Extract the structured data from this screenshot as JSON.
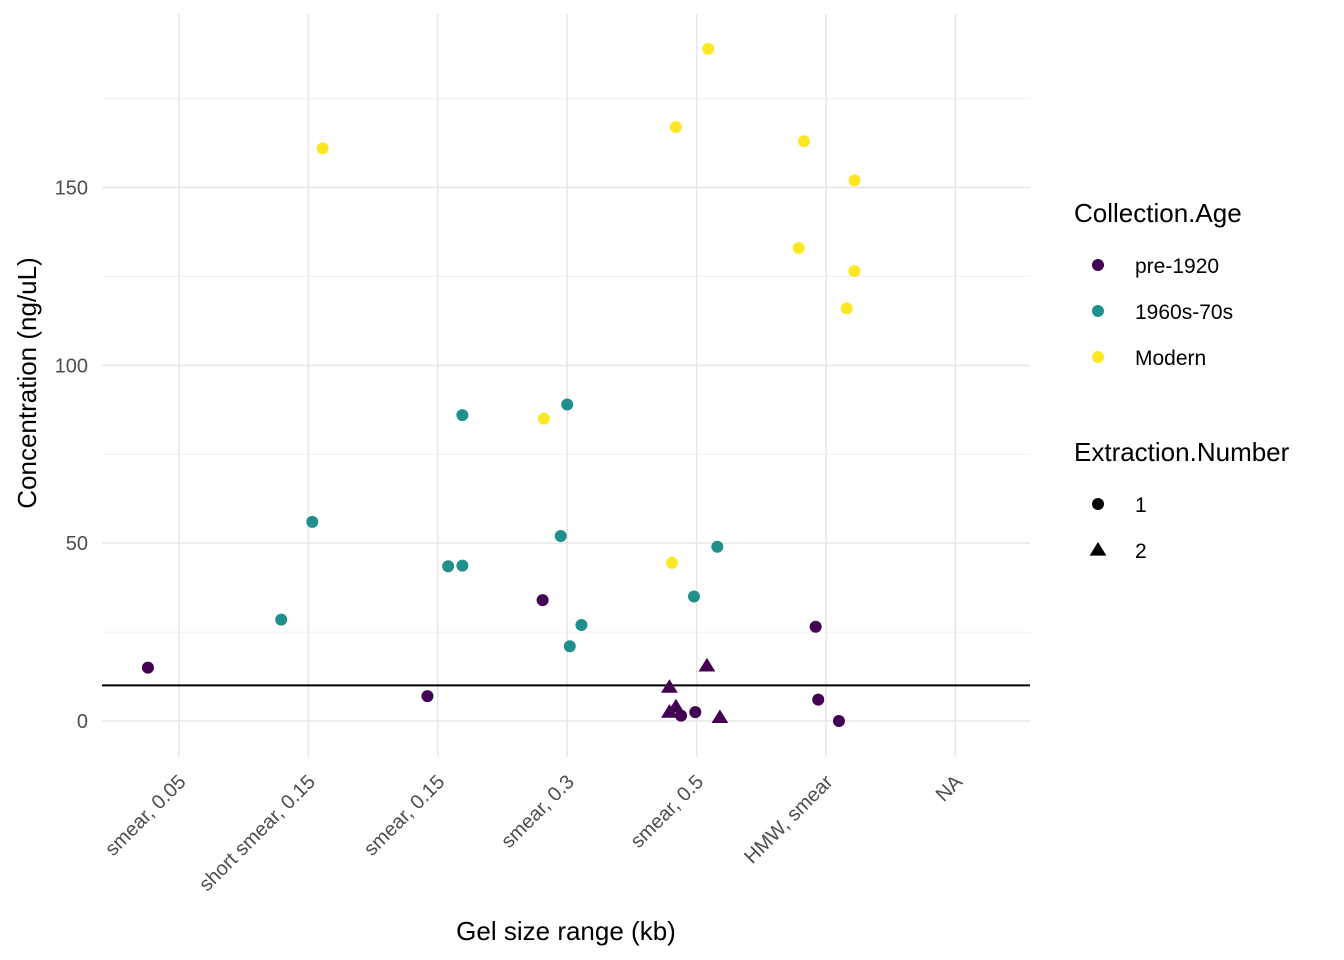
{
  "chart_data": {
    "type": "scatter",
    "xlabel": "Gel size range (kb)",
    "ylabel": "Concentration (ng/uL)",
    "categories": [
      "smear, 0.05",
      "short smear, 0.15",
      "smear, 0.15",
      "smear, 0.3",
      "smear, 0.5",
      "HMW, smear",
      "NA"
    ],
    "ylim": [
      -8,
      198
    ],
    "y_ticks": [
      0,
      50,
      100,
      150
    ],
    "y_tick_labels": [
      "0",
      "50",
      "100",
      "150"
    ],
    "grid": true,
    "hline": 10,
    "legends": [
      {
        "title": "Collection.Age",
        "placement": "right",
        "entries": [
          {
            "label": "pre-1920",
            "color": "#440154",
            "shape": "circle"
          },
          {
            "label": "1960s-70s",
            "color": "#21908C",
            "shape": "circle"
          },
          {
            "label": "Modern",
            "color": "#FDE725",
            "shape": "circle"
          }
        ]
      },
      {
        "title": "Extraction.Number",
        "placement": "right",
        "entries": [
          {
            "label": "1",
            "color": "#000000",
            "shape": "circle"
          },
          {
            "label": "2",
            "color": "#000000",
            "shape": "triangle"
          }
        ]
      }
    ],
    "points": [
      {
        "x": 0.76,
        "y": 15,
        "age": "pre-1920",
        "extraction": 1
      },
      {
        "x": 1.79,
        "y": 28.5,
        "age": "1960s-70s",
        "extraction": 1
      },
      {
        "x": 2.03,
        "y": 56,
        "age": "1960s-70s",
        "extraction": 1
      },
      {
        "x": 2.11,
        "y": 161,
        "age": "Modern",
        "extraction": 1
      },
      {
        "x": 2.92,
        "y": 7,
        "age": "pre-1920",
        "extraction": 1
      },
      {
        "x": 3.08,
        "y": 43.5,
        "age": "1960s-70s",
        "extraction": 1
      },
      {
        "x": 3.19,
        "y": 43.7,
        "age": "1960s-70s",
        "extraction": 1
      },
      {
        "x": 3.19,
        "y": 86,
        "age": "1960s-70s",
        "extraction": 1
      },
      {
        "x": 3.81,
        "y": 34,
        "age": "pre-1920",
        "extraction": 1
      },
      {
        "x": 3.82,
        "y": 85,
        "age": "Modern",
        "extraction": 1
      },
      {
        "x": 3.95,
        "y": 52,
        "age": "1960s-70s",
        "extraction": 1
      },
      {
        "x": 4.0,
        "y": 89,
        "age": "1960s-70s",
        "extraction": 1
      },
      {
        "x": 4.02,
        "y": 21,
        "age": "1960s-70s",
        "extraction": 1
      },
      {
        "x": 4.11,
        "y": 27,
        "age": "1960s-70s",
        "extraction": 1
      },
      {
        "x": 4.81,
        "y": 44.5,
        "age": "Modern",
        "extraction": 1
      },
      {
        "x": 4.84,
        "y": 167,
        "age": "Modern",
        "extraction": 1
      },
      {
        "x": 4.88,
        "y": 1.5,
        "age": "pre-1920",
        "extraction": 1
      },
      {
        "x": 4.98,
        "y": 35,
        "age": "1960s-70s",
        "extraction": 1
      },
      {
        "x": 4.99,
        "y": 2.5,
        "age": "pre-1920",
        "extraction": 1
      },
      {
        "x": 5.09,
        "y": 189,
        "age": "Modern",
        "extraction": 1
      },
      {
        "x": 5.16,
        "y": 49,
        "age": "1960s-70s",
        "extraction": 1
      },
      {
        "x": 5.79,
        "y": 133,
        "age": "Modern",
        "extraction": 1
      },
      {
        "x": 5.83,
        "y": 163,
        "age": "Modern",
        "extraction": 1
      },
      {
        "x": 5.92,
        "y": 26.5,
        "age": "pre-1920",
        "extraction": 1
      },
      {
        "x": 5.94,
        "y": 6,
        "age": "pre-1920",
        "extraction": 1
      },
      {
        "x": 6.1,
        "y": 0,
        "age": "pre-1920",
        "extraction": 1
      },
      {
        "x": 6.16,
        "y": 116,
        "age": "Modern",
        "extraction": 1
      },
      {
        "x": 6.22,
        "y": 152,
        "age": "Modern",
        "extraction": 1
      },
      {
        "x": 6.22,
        "y": 126.5,
        "age": "Modern",
        "extraction": 1
      },
      {
        "x": 4.79,
        "y": 9.5,
        "age": "pre-1920",
        "extraction": 2
      },
      {
        "x": 4.79,
        "y": 2.5,
        "age": "pre-1920",
        "extraction": 2
      },
      {
        "x": 4.84,
        "y": 4,
        "age": "pre-1920",
        "extraction": 2
      },
      {
        "x": 5.08,
        "y": 15.5,
        "age": "pre-1920",
        "extraction": 2
      },
      {
        "x": 5.18,
        "y": 1,
        "age": "pre-1920",
        "extraction": 2
      }
    ]
  }
}
